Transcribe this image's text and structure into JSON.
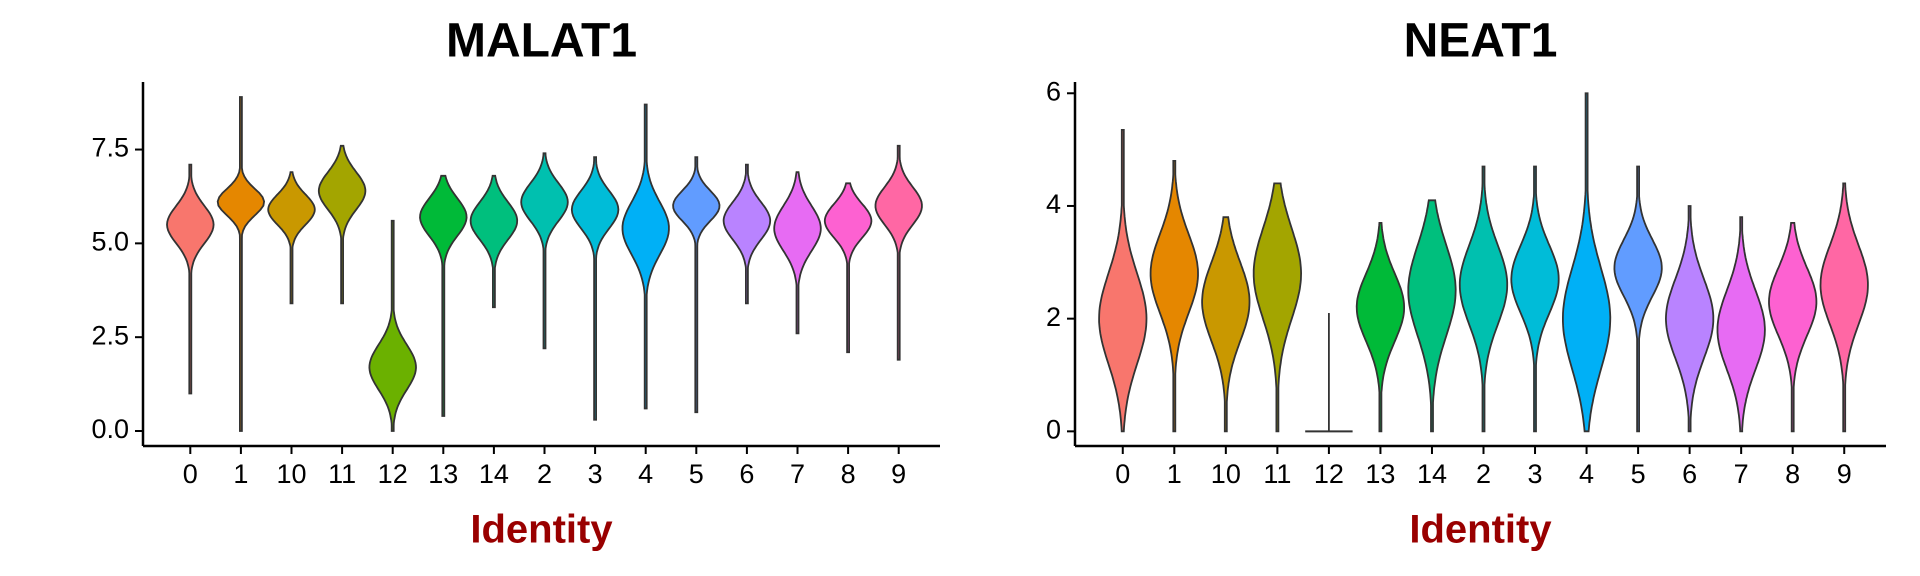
{
  "chart_data": [
    {
      "type": "violin",
      "title": "MALAT1",
      "x_label": "Identity",
      "categories": [
        "0",
        "1",
        "10",
        "11",
        "12",
        "13",
        "14",
        "2",
        "3",
        "4",
        "5",
        "6",
        "7",
        "8",
        "9"
      ],
      "colors": [
        "#F8766D",
        "#E58700",
        "#C99800",
        "#A3A500",
        "#6BB100",
        "#00BA38",
        "#00BF7D",
        "#00C0AF",
        "#00BCD8",
        "#00B0F6",
        "#619CFF",
        "#B983FF",
        "#E76BF3",
        "#FD61D1",
        "#FF67A4"
      ],
      "min": [
        1.0,
        0.0,
        3.4,
        3.4,
        0.0,
        0.4,
        3.3,
        2.2,
        0.3,
        0.6,
        0.5,
        3.4,
        2.6,
        2.1,
        1.9
      ],
      "max": [
        7.1,
        8.9,
        6.9,
        7.6,
        5.6,
        6.8,
        6.8,
        7.4,
        7.3,
        8.7,
        7.3,
        7.1,
        6.9,
        6.6,
        7.6
      ],
      "mode": [
        5.5,
        6.1,
        5.9,
        6.4,
        1.7,
        5.7,
        5.6,
        6.1,
        5.9,
        5.4,
        6.0,
        5.6,
        5.4,
        5.6,
        6.0
      ],
      "spread": [
        0.5,
        0.35,
        0.4,
        0.5,
        0.6,
        0.5,
        0.5,
        0.5,
        0.5,
        0.7,
        0.4,
        0.5,
        0.6,
        0.45,
        0.5
      ],
      "ylim": [
        -0.4,
        9.3
      ],
      "yticks": [
        {
          "value": 0,
          "label": "0.0"
        },
        {
          "value": 2.5,
          "label": "2.5"
        },
        {
          "value": 5,
          "label": "5.0"
        },
        {
          "value": 7.5,
          "label": "7.5"
        }
      ]
    },
    {
      "type": "violin",
      "title": "NEAT1",
      "x_label": "Identity",
      "categories": [
        "0",
        "1",
        "10",
        "11",
        "12",
        "13",
        "14",
        "2",
        "3",
        "4",
        "5",
        "6",
        "7",
        "8",
        "9"
      ],
      "colors": [
        "#F8766D",
        "#E58700",
        "#C99800",
        "#A3A500",
        "#6BB100",
        "#00BA38",
        "#00BF7D",
        "#00C0AF",
        "#00BCD8",
        "#00B0F6",
        "#619CFF",
        "#B983FF",
        "#E76BF3",
        "#FD61D1",
        "#FF67A4"
      ],
      "min": [
        0,
        0,
        0,
        0,
        0,
        0,
        0,
        0,
        0,
        0,
        0,
        0,
        0,
        0,
        0
      ],
      "max": [
        5.35,
        4.8,
        3.8,
        4.4,
        2.1,
        3.7,
        4.1,
        4.7,
        4.7,
        6.0,
        4.7,
        4.0,
        3.8,
        3.7,
        4.4
      ],
      "mode": [
        2.0,
        2.8,
        2.3,
        2.8,
        0,
        2.2,
        2.5,
        2.6,
        2.7,
        2.0,
        2.9,
        2.0,
        1.8,
        2.3,
        2.6
      ],
      "spread": [
        0.8,
        0.7,
        0.7,
        0.8,
        0,
        0.6,
        0.8,
        0.7,
        0.6,
        0.9,
        0.5,
        0.7,
        0.7,
        0.6,
        0.7
      ],
      "ylim": [
        -0.26,
        6.2
      ],
      "yticks": [
        0,
        2,
        4,
        6
      ]
    }
  ]
}
